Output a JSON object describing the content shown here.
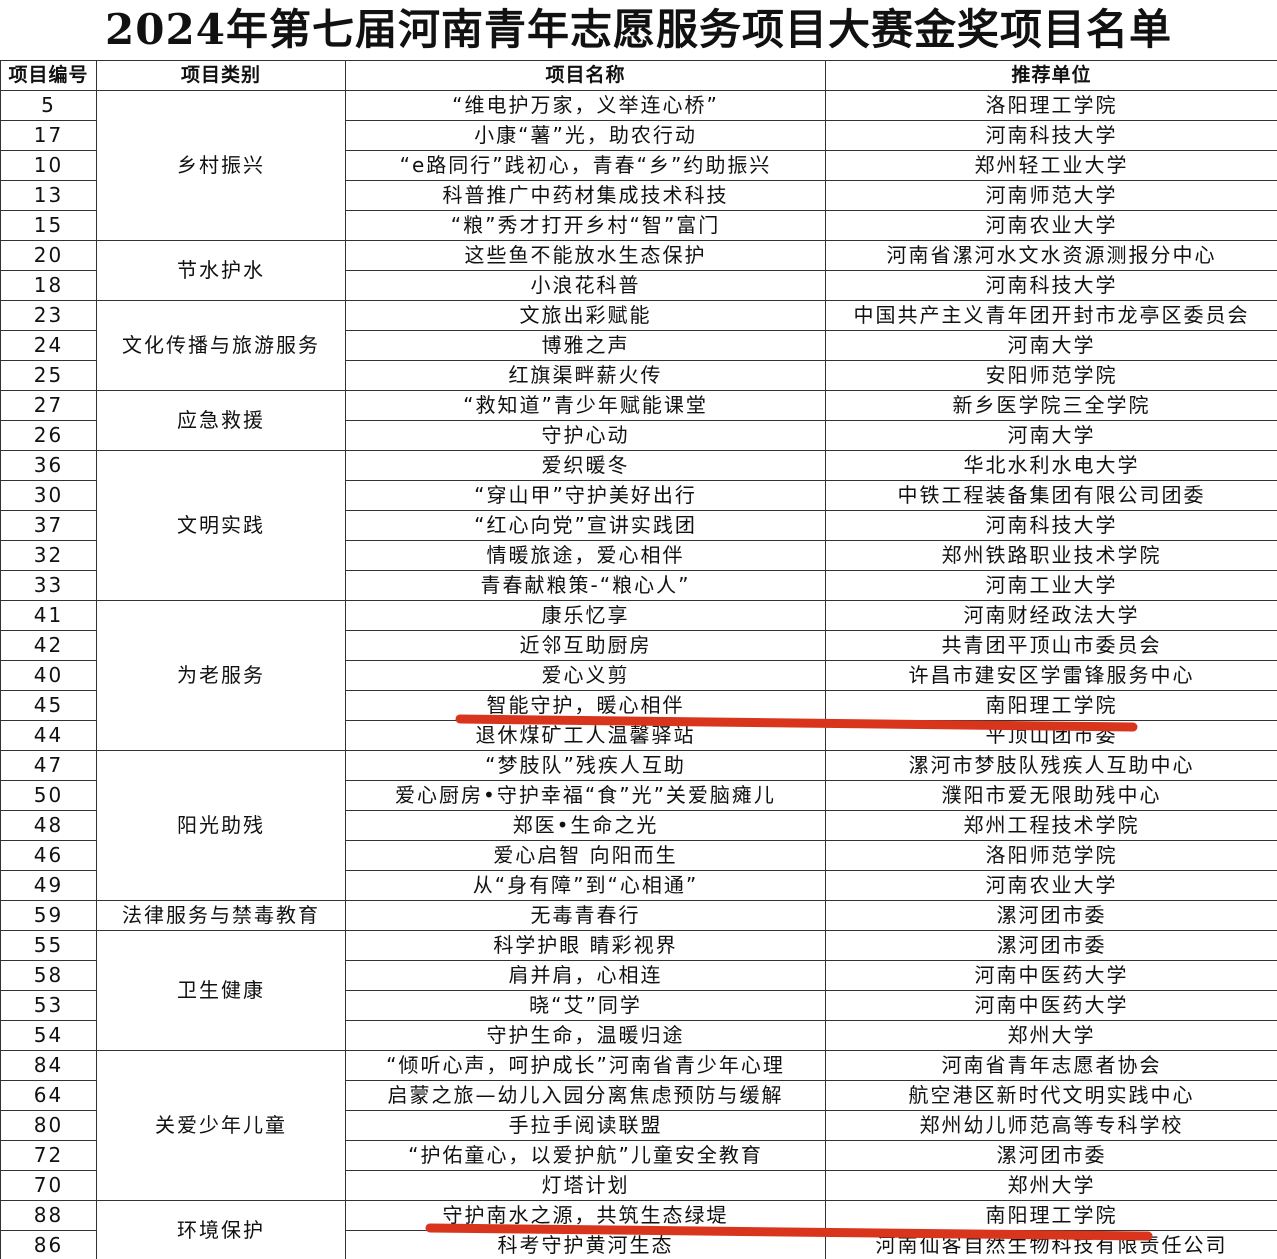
{
  "title": "2024年第七届河南青年志愿服务项目大赛金奖项目名单",
  "table": {
    "header": [
      "项目编号",
      "项目类别",
      "项目名称",
      "推荐单位"
    ],
    "groups": [
      {
        "category": "乡村振兴",
        "items": [
          {
            "id": 5,
            "name": "“维电护万家，义举连心桥”",
            "unit": "洛阳理工学院"
          },
          {
            "id": 17,
            "name": "小康“薯”光，助农行动",
            "unit": "河南科技大学"
          },
          {
            "id": 10,
            "name": "“e路同行”践初心，青春“乡”约助振兴",
            "unit": "郑州轻工业大学"
          },
          {
            "id": 13,
            "name": "科普推广中药材集成技术科技",
            "unit": "河南师范大学"
          },
          {
            "id": 15,
            "name": "“粮”秀才打开乡村“智”富门",
            "unit": "河南农业大学"
          }
        ]
      },
      {
        "category": "节水护水",
        "items": [
          {
            "id": 20,
            "name": "这些鱼不能放水生态保护",
            "unit": "河南省漯河水文水资源测报分中心"
          },
          {
            "id": 18,
            "name": "小浪花科普",
            "unit": "河南科技大学"
          }
        ]
      },
      {
        "category": "文化传播与旅游服务",
        "items": [
          {
            "id": 23,
            "name": "文旅出彩赋能",
            "unit": "中国共产主义青年团开封市龙亭区委员会"
          },
          {
            "id": 24,
            "name": "博雅之声",
            "unit": "河南大学"
          },
          {
            "id": 25,
            "name": "红旗渠畔薪火传",
            "unit": "安阳师范学院"
          }
        ]
      },
      {
        "category": "应急救援",
        "items": [
          {
            "id": 27,
            "name": "“救知道”青少年赋能课堂",
            "unit": "新乡医学院三全学院"
          },
          {
            "id": 26,
            "name": "守护心动",
            "unit": "河南大学"
          }
        ]
      },
      {
        "category": "文明实践",
        "items": [
          {
            "id": 36,
            "name": "爱织暖冬",
            "unit": "华北水利水电大学"
          },
          {
            "id": 30,
            "name": "“穿山甲”守护美好出行",
            "unit": "中铁工程装备集团有限公司团委"
          },
          {
            "id": 37,
            "name": "“红心向党”宣讲实践团",
            "unit": "河南科技大学"
          },
          {
            "id": 32,
            "name": "情暖旅途，爱心相伴",
            "unit": "郑州铁路职业技术学院"
          },
          {
            "id": 33,
            "name": "青春献粮策-“粮心人”",
            "unit": "河南工业大学"
          }
        ]
      },
      {
        "category": "为老服务",
        "items": [
          {
            "id": 41,
            "name": "康乐忆享",
            "unit": "河南财经政法大学"
          },
          {
            "id": 42,
            "name": "近邻互助厨房",
            "unit": "共青团平顶山市委员会"
          },
          {
            "id": 40,
            "name": "爱心义剪",
            "unit": "许昌市建安区学雷锋服务中心"
          },
          {
            "id": 45,
            "name": "智能守护，暖心相伴",
            "unit": "南阳理工学院"
          },
          {
            "id": 44,
            "name": "退休煤矿工人温馨驿站",
            "unit": "平顶山团市委"
          }
        ]
      },
      {
        "category": "阳光助残",
        "items": [
          {
            "id": 47,
            "name": "“梦肢队”残疾人互助",
            "unit": "漯河市梦肢队残疾人互助中心"
          },
          {
            "id": 50,
            "name": "爱心厨房•守护幸福“食”光”关爱脑瘫儿",
            "unit": "濮阳市爱无限助残中心"
          },
          {
            "id": 48,
            "name": "郑医•生命之光",
            "unit": "郑州工程技术学院"
          },
          {
            "id": 46,
            "name": "爱心启智 向阳而生",
            "unit": "洛阳师范学院"
          },
          {
            "id": 49,
            "name": "从“身有障”到“心相通”",
            "unit": "河南农业大学"
          }
        ]
      },
      {
        "category": "法律服务与禁毒教育",
        "items": [
          {
            "id": 59,
            "name": "无毒青春行",
            "unit": "漯河团市委"
          }
        ]
      },
      {
        "category": "卫生健康",
        "items": [
          {
            "id": 55,
            "name": "科学护眼 睛彩视界",
            "unit": "漯河团市委"
          },
          {
            "id": 58,
            "name": "肩并肩，心相连",
            "unit": "河南中医药大学"
          },
          {
            "id": 53,
            "name": "晓“艾”同学",
            "unit": "河南中医药大学"
          },
          {
            "id": 54,
            "name": "守护生命，温暖归途",
            "unit": "郑州大学"
          }
        ]
      },
      {
        "category": "关爱少年儿童",
        "items": [
          {
            "id": 84,
            "name": "“倾听心声，呵护成长”河南省青少年心理",
            "unit": "河南省青年志愿者协会"
          },
          {
            "id": 64,
            "name": "启蒙之旅—幼儿入园分离焦虑预防与缓解",
            "unit": "航空港区新时代文明实践中心"
          },
          {
            "id": 80,
            "name": "手拉手阅读联盟",
            "unit": "郑州幼儿师范高等专科学校"
          },
          {
            "id": 72,
            "name": "“护佑童心，以爱护航”儿童安全教育",
            "unit": "漯河团市委"
          },
          {
            "id": 70,
            "name": "灯塔计划",
            "unit": "郑州大学"
          }
        ]
      },
      {
        "category": "环境保护",
        "items": [
          {
            "id": 88,
            "name": "守护南水之源，共筑生态绿堤",
            "unit": "南阳理工学院"
          },
          {
            "id": 86,
            "name": "科考守护黄河生态",
            "unit": "河南仙客自然生物科技有限责任公司"
          }
        ]
      }
    ]
  }
}
